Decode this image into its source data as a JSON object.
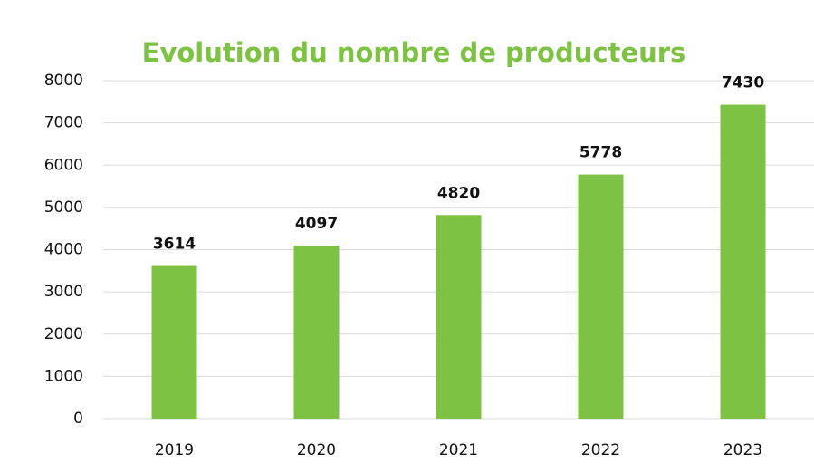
{
  "chart_data": {
    "type": "bar",
    "title": "Evolution du nombre de producteurs",
    "categories": [
      "2019",
      "2020",
      "2021",
      "2022",
      "2023"
    ],
    "values": [
      3614,
      4097,
      4820,
      5778,
      7430
    ],
    "color": "#7dc242",
    "ylim": [
      0,
      8000
    ],
    "yticks": [
      0,
      1000,
      2000,
      3000,
      4000,
      5000,
      6000,
      7000,
      8000
    ],
    "grid": true
  }
}
